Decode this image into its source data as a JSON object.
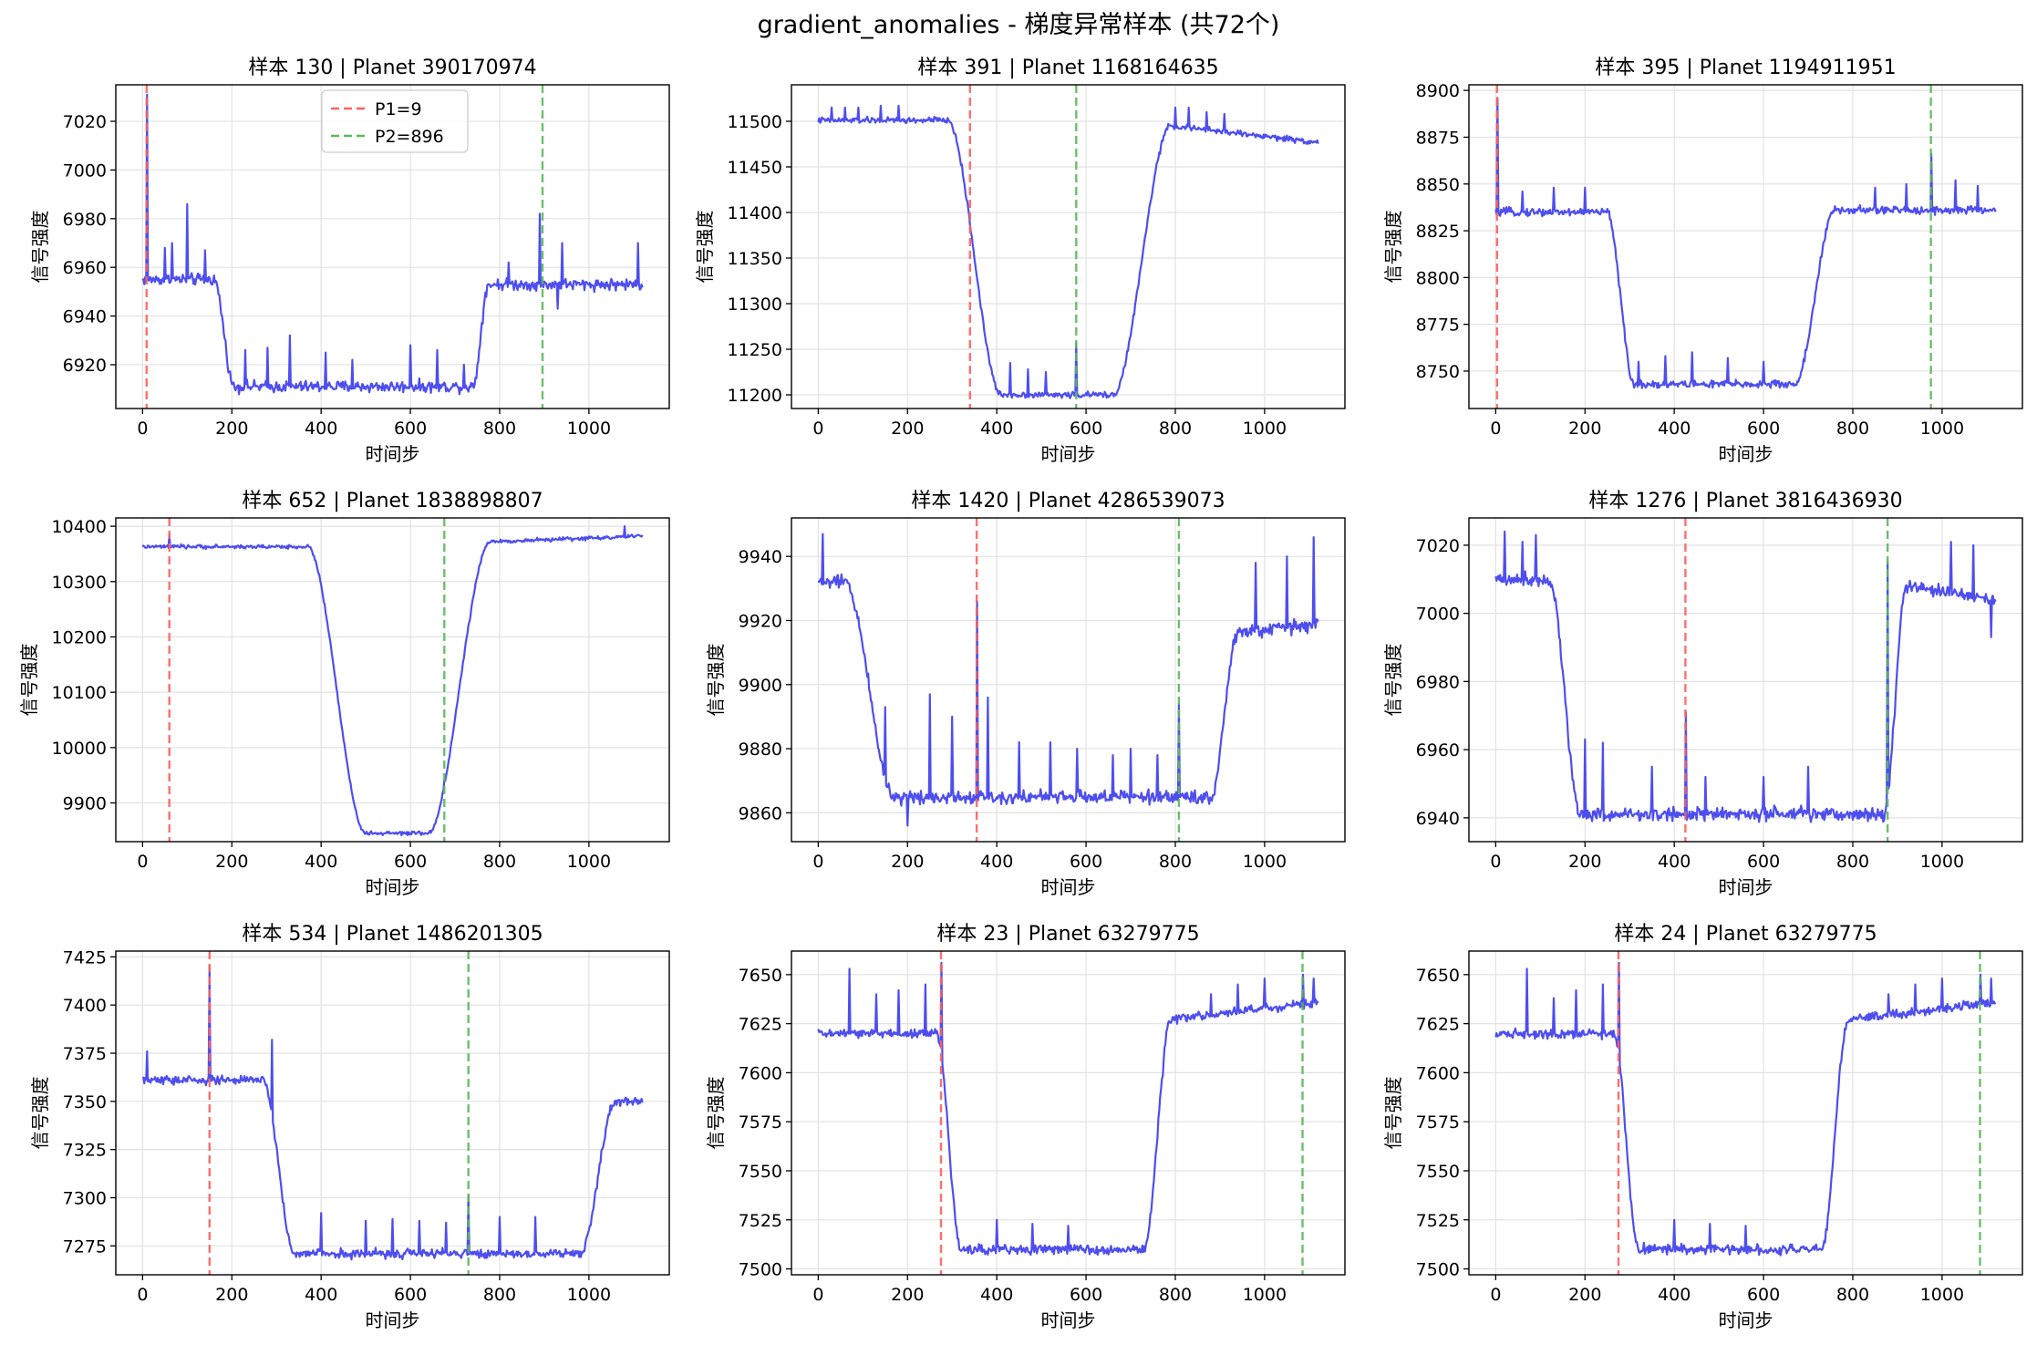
{
  "suptitle": "gradient_anomalies - 梯度异常样本 (共72个)",
  "colors": {
    "signal": "#4444ee",
    "p1": "#ff6060",
    "p2": "#5cb85c",
    "grid": "#e2e2e2"
  },
  "legend": {
    "p1_label": "P1=9",
    "p2_label": "P2=896",
    "placement": "upper center (first panel)"
  },
  "chart_data": [
    {
      "type": "line",
      "title": "样本 130 | Planet 390170974",
      "xlabel": "时间步",
      "ylabel": "信号强度",
      "xlim": [
        -60,
        1180
      ],
      "ylim": [
        6902,
        7035
      ],
      "xticks": [
        0,
        200,
        400,
        600,
        800,
        1000
      ],
      "yticks": [
        6920,
        6940,
        6960,
        6980,
        7000,
        7020
      ],
      "p1": 9,
      "p2": 896,
      "profile": {
        "pre": 6955,
        "bottom": 6911,
        "post": 6953,
        "post_slope": 0,
        "t1": 160,
        "t2": 205,
        "t3": 740,
        "t4": 775,
        "noise": 1.8
      },
      "spikes": [
        [
          9,
          7031
        ],
        [
          50,
          6968
        ],
        [
          65,
          6970
        ],
        [
          100,
          6986
        ],
        [
          140,
          6967
        ],
        [
          230,
          6926
        ],
        [
          280,
          6927
        ],
        [
          330,
          6932
        ],
        [
          410,
          6925
        ],
        [
          470,
          6922
        ],
        [
          600,
          6928
        ],
        [
          660,
          6926
        ],
        [
          720,
          6920
        ],
        [
          820,
          6962
        ],
        [
          890,
          6982
        ],
        [
          940,
          6970
        ],
        [
          1110,
          6970
        ],
        [
          930,
          6943
        ]
      ]
    },
    {
      "type": "line",
      "title": "样本 391 | Planet 1168164635",
      "xlabel": "时间步",
      "ylabel": "信号强度",
      "xlim": [
        -60,
        1180
      ],
      "ylim": [
        11185,
        11540
      ],
      "xticks": [
        0,
        200,
        400,
        600,
        800,
        1000
      ],
      "yticks": [
        11200,
        11250,
        11300,
        11350,
        11400,
        11450,
        11500
      ],
      "p1": 340,
      "p2": 578,
      "profile": {
        "pre": 11501,
        "bottom": 11200,
        "post": 11495,
        "post_slope": -18,
        "t1": 290,
        "t2": 410,
        "t3": 660,
        "t4": 790,
        "noise": 2.5
      },
      "spikes": [
        [
          30,
          11515
        ],
        [
          60,
          11515
        ],
        [
          90,
          11515
        ],
        [
          140,
          11517
        ],
        [
          180,
          11517
        ],
        [
          260,
          11505
        ],
        [
          430,
          11235
        ],
        [
          470,
          11228
        ],
        [
          510,
          11225
        ],
        [
          578,
          11257
        ],
        [
          800,
          11515
        ],
        [
          830,
          11515
        ],
        [
          870,
          11510
        ],
        [
          910,
          11508
        ]
      ]
    },
    {
      "type": "line",
      "title": "样本 395 | Planet 1194911951",
      "xlabel": "时间步",
      "ylabel": "信号强度",
      "xlim": [
        -60,
        1180
      ],
      "ylim": [
        8730,
        8903
      ],
      "xticks": [
        0,
        200,
        400,
        600,
        800,
        1000
      ],
      "yticks": [
        8750,
        8775,
        8800,
        8825,
        8850,
        8875,
        8900
      ],
      "p1": 3,
      "p2": 975,
      "profile": {
        "pre": 8835,
        "bottom": 8743,
        "post": 8836,
        "post_slope": 0,
        "t1": 250,
        "t2": 310,
        "t3": 670,
        "t4": 760,
        "noise": 1.6
      },
      "spikes": [
        [
          3,
          8896
        ],
        [
          60,
          8846
        ],
        [
          130,
          8848
        ],
        [
          200,
          8848
        ],
        [
          320,
          8755
        ],
        [
          380,
          8758
        ],
        [
          440,
          8760
        ],
        [
          520,
          8757
        ],
        [
          600,
          8755
        ],
        [
          850,
          8848
        ],
        [
          920,
          8850
        ],
        [
          975,
          8866
        ],
        [
          1030,
          8852
        ],
        [
          1080,
          8849
        ]
      ]
    },
    {
      "type": "line",
      "title": "样本 652 | Planet 1838898807",
      "xlabel": "时间步",
      "ylabel": "信号强度",
      "xlim": [
        -60,
        1180
      ],
      "ylim": [
        9830,
        10415
      ],
      "xticks": [
        0,
        200,
        400,
        600,
        800,
        1000
      ],
      "yticks": [
        9900,
        10000,
        10100,
        10200,
        10300,
        10400
      ],
      "p1": 60,
      "p2": 676,
      "profile": {
        "pre": 10363,
        "bottom": 9845,
        "post": 10372,
        "post_slope": 10,
        "t1": 370,
        "t2": 500,
        "t3": 640,
        "t4": 780,
        "noise": 2.5
      },
      "spikes": [
        [
          60,
          10385
        ],
        [
          676,
          9942
        ],
        [
          1080,
          10400
        ]
      ]
    },
    {
      "type": "line",
      "title": "样本 1420 | Planet 4286539073",
      "xlabel": "时间步",
      "ylabel": "信号强度",
      "xlim": [
        -60,
        1180
      ],
      "ylim": [
        9851,
        9952
      ],
      "xticks": [
        0,
        200,
        400,
        600,
        800,
        1000
      ],
      "yticks": [
        9860,
        9880,
        9900,
        9920,
        9940
      ],
      "p1": 355,
      "p2": 808,
      "profile": {
        "pre": 9932,
        "bottom": 9865,
        "post": 9916,
        "post_slope": 3,
        "t1": 60,
        "t2": 170,
        "t3": 880,
        "t4": 940,
        "noise": 1.6
      },
      "spikes": [
        [
          10,
          9947
        ],
        [
          150,
          9893
        ],
        [
          200,
          9856
        ],
        [
          250,
          9897
        ],
        [
          300,
          9890
        ],
        [
          355,
          9926
        ],
        [
          380,
          9896
        ],
        [
          450,
          9882
        ],
        [
          520,
          9882
        ],
        [
          580,
          9880
        ],
        [
          660,
          9878
        ],
        [
          700,
          9880
        ],
        [
          760,
          9878
        ],
        [
          808,
          9894
        ],
        [
          980,
          9938
        ],
        [
          1050,
          9940
        ],
        [
          1110,
          9946
        ]
      ]
    },
    {
      "type": "line",
      "title": "样本 1276 | Planet 3816436930",
      "xlabel": "时间步",
      "ylabel": "信号强度",
      "xlim": [
        -60,
        1180
      ],
      "ylim": [
        6933,
        7028
      ],
      "xticks": [
        0,
        200,
        400,
        600,
        800,
        1000
      ],
      "yticks": [
        6940,
        6960,
        6980,
        7000,
        7020
      ],
      "p1": 425,
      "p2": 878,
      "profile": {
        "pre": 7010,
        "bottom": 6941,
        "post": 7008,
        "post_slope": -4,
        "t1": 120,
        "t2": 190,
        "t3": 870,
        "t4": 920,
        "noise": 1.5
      },
      "spikes": [
        [
          20,
          7024
        ],
        [
          60,
          7021
        ],
        [
          90,
          7023
        ],
        [
          200,
          6963
        ],
        [
          240,
          6962
        ],
        [
          350,
          6955
        ],
        [
          425,
          6971
        ],
        [
          470,
          6952
        ],
        [
          600,
          6952
        ],
        [
          700,
          6955
        ],
        [
          878,
          7015
        ],
        [
          1020,
          7021
        ],
        [
          1070,
          7020
        ],
        [
          1110,
          6993
        ]
      ]
    },
    {
      "type": "line",
      "title": "样本 534 | Planet 1486201305",
      "xlabel": "时间步",
      "ylabel": "信号强度",
      "xlim": [
        -60,
        1180
      ],
      "ylim": [
        7260,
        7428
      ],
      "xticks": [
        0,
        200,
        400,
        600,
        800,
        1000
      ],
      "yticks": [
        7275,
        7300,
        7325,
        7350,
        7375,
        7400,
        7425
      ],
      "p1": 150,
      "p2": 730,
      "profile": {
        "pre": 7361,
        "bottom": 7271,
        "post": 7350,
        "post_slope": 0,
        "t1": 270,
        "t2": 340,
        "t3": 980,
        "t4": 1060,
        "noise": 1.8
      },
      "spikes": [
        [
          10,
          7376
        ],
        [
          150,
          7420
        ],
        [
          290,
          7382
        ],
        [
          400,
          7292
        ],
        [
          500,
          7288
        ],
        [
          560,
          7289
        ],
        [
          620,
          7288
        ],
        [
          680,
          7287
        ],
        [
          730,
          7301
        ],
        [
          800,
          7290
        ],
        [
          880,
          7290
        ]
      ]
    },
    {
      "type": "line",
      "title": "样本 23 | Planet 63279775",
      "xlabel": "时间步",
      "ylabel": "信号强度",
      "xlim": [
        -60,
        1180
      ],
      "ylim": [
        7497,
        7662
      ],
      "xticks": [
        0,
        200,
        400,
        600,
        800,
        1000
      ],
      "yticks": [
        7500,
        7525,
        7550,
        7575,
        7600,
        7625,
        7650
      ],
      "p1": 275,
      "p2": 1085,
      "profile": {
        "pre": 7620,
        "bottom": 7510,
        "post": 7627,
        "post_slope": 9,
        "t1": 265,
        "t2": 320,
        "t3": 730,
        "t4": 790,
        "noise": 1.8
      },
      "spikes": [
        [
          70,
          7653
        ],
        [
          130,
          7640
        ],
        [
          180,
          7642
        ],
        [
          240,
          7645
        ],
        [
          275,
          7656
        ],
        [
          400,
          7525
        ],
        [
          480,
          7523
        ],
        [
          560,
          7522
        ],
        [
          880,
          7640
        ],
        [
          940,
          7645
        ],
        [
          1000,
          7648
        ],
        [
          1085,
          7650
        ],
        [
          1110,
          7648
        ]
      ]
    },
    {
      "type": "line",
      "title": "样本 24 | Planet 63279775",
      "xlabel": "时间步",
      "ylabel": "信号强度",
      "xlim": [
        -60,
        1180
      ],
      "ylim": [
        7497,
        7662
      ],
      "xticks": [
        0,
        200,
        400,
        600,
        800,
        1000
      ],
      "yticks": [
        7500,
        7525,
        7550,
        7575,
        7600,
        7625,
        7650
      ],
      "p1": 275,
      "p2": 1085,
      "profile": {
        "pre": 7620,
        "bottom": 7510,
        "post": 7627,
        "post_slope": 9,
        "t1": 265,
        "t2": 320,
        "t3": 730,
        "t4": 790,
        "noise": 1.8
      },
      "spikes": [
        [
          70,
          7653
        ],
        [
          130,
          7638
        ],
        [
          180,
          7642
        ],
        [
          240,
          7645
        ],
        [
          275,
          7656
        ],
        [
          400,
          7525
        ],
        [
          480,
          7523
        ],
        [
          560,
          7522
        ],
        [
          880,
          7640
        ],
        [
          940,
          7645
        ],
        [
          1000,
          7648
        ],
        [
          1085,
          7650
        ],
        [
          1110,
          7648
        ]
      ]
    }
  ]
}
